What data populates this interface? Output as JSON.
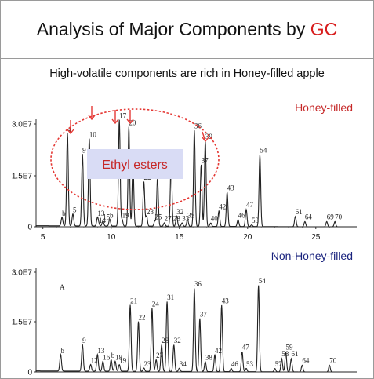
{
  "header": {
    "title_main": "Analysis of Major Components by ",
    "title_accent": "GC",
    "subtitle": "High-volatile components are rich in Honey-filled apple"
  },
  "colors": {
    "accent": "#d81e1e",
    "trace": "#222222",
    "ellipse": "#e53935",
    "callout_bg": "#d9dcf5"
  },
  "annotation": {
    "text": "Ethyl esters"
  },
  "chart_data": [
    {
      "type": "line",
      "label": "Honey-filled",
      "label_color": "#c62828",
      "x_ticks": [
        5,
        10,
        15,
        20,
        25
      ],
      "y_ticks": [
        "0",
        "1.5E7",
        "3.0E7"
      ],
      "xlim": [
        4.5,
        28
      ],
      "ylim": [
        0,
        34000000.0
      ],
      "peaks": [
        {
          "label": "b",
          "rt": 6.4,
          "h": 2500000.0
        },
        {
          "label": "4",
          "rt": 6.8,
          "h": 27000000.0
        },
        {
          "label": "5",
          "rt": 7.2,
          "h": 3500000.0
        },
        {
          "label": "9",
          "rt": 7.9,
          "h": 21000000.0
        },
        {
          "label": "10",
          "rt": 8.4,
          "h": 25500000.0
        },
        {
          "label": "13",
          "rt": 9.0,
          "h": 2500000.0
        },
        {
          "label": "14",
          "rt": 9.1,
          "h": 500000.0
        },
        {
          "label": "15",
          "rt": 9.4,
          "h": 1500000.0
        },
        {
          "label": "b",
          "rt": 9.9,
          "h": 2000000.0
        },
        {
          "label": "17",
          "rt": 10.6,
          "h": 31000000.0
        },
        {
          "label": "19",
          "rt": 10.8,
          "h": 2000000.0
        },
        {
          "label": "20",
          "rt": 11.3,
          "h": 29000000.0
        },
        {
          "label": "21",
          "rt": 11.6,
          "h": 19000000.0
        },
        {
          "label": "22",
          "rt": 12.4,
          "h": 13000000.0
        },
        {
          "label": "23",
          "rt": 12.6,
          "h": 3000000.0
        },
        {
          "label": "24",
          "rt": 13.4,
          "h": 14000000.0
        },
        {
          "label": "25",
          "rt": 13.2,
          "h": 1500000.0
        },
        {
          "label": "27,28",
          "rt": 13.9,
          "h": 1000000.0
        },
        {
          "label": "31",
          "rt": 14.4,
          "h": 20000000.0
        },
        {
          "label": "32",
          "rt": 14.8,
          "h": 3000000.0
        },
        {
          "label": "33",
          "rt": 15.2,
          "h": 1000000.0
        },
        {
          "label": "35",
          "rt": 15.6,
          "h": 2000000.0
        },
        {
          "label": "36",
          "rt": 16.1,
          "h": 28000000.0
        },
        {
          "label": "37",
          "rt": 16.6,
          "h": 18000000.0
        },
        {
          "label": "39",
          "rt": 16.9,
          "h": 25000000.0
        },
        {
          "label": "40",
          "rt": 17.3,
          "h": 1000000.0
        },
        {
          "label": "42",
          "rt": 17.9,
          "h": 4500000.0
        },
        {
          "label": "43",
          "rt": 18.5,
          "h": 10000000.0
        },
        {
          "label": "46",
          "rt": 19.3,
          "h": 2000000.0
        },
        {
          "label": "47",
          "rt": 19.9,
          "h": 5000000.0
        },
        {
          "label": "53",
          "rt": 20.3,
          "h": 500000.0
        },
        {
          "label": "54",
          "rt": 20.9,
          "h": 21000000.0
        },
        {
          "label": "61",
          "rt": 23.5,
          "h": 3000000.0
        },
        {
          "label": "64",
          "rt": 24.2,
          "h": 1500000.0
        },
        {
          "label": "69",
          "rt": 25.8,
          "h": 1500000.0
        },
        {
          "label": "70",
          "rt": 26.4,
          "h": 1500000.0
        }
      ]
    },
    {
      "type": "line",
      "label": "Non-Honey-filled",
      "label_color": "#1a237e",
      "y_ticks": [
        "0",
        "1.5E7",
        "3.0E7"
      ],
      "xlim": [
        4.5,
        28
      ],
      "ylim": [
        0,
        34000000.0
      ],
      "inner_label": "A",
      "peaks": [
        {
          "label": "b",
          "rt": 6.3,
          "h": 5000000.0
        },
        {
          "label": "9",
          "rt": 7.9,
          "h": 8000000.0
        },
        {
          "label": "12",
          "rt": 8.5,
          "h": 2000000.0
        },
        {
          "label": "13",
          "rt": 9.0,
          "h": 5000000.0
        },
        {
          "label": "16",
          "rt": 9.4,
          "h": 3000000.0
        },
        {
          "label": "b",
          "rt": 10.0,
          "h": 3500000.0
        },
        {
          "label": "18",
          "rt": 10.3,
          "h": 3000000.0
        },
        {
          "label": "19",
          "rt": 10.6,
          "h": 2000000.0
        },
        {
          "label": "21",
          "rt": 11.4,
          "h": 20000000.0
        },
        {
          "label": "22",
          "rt": 12.0,
          "h": 15000000.0
        },
        {
          "label": "23",
          "rt": 12.4,
          "h": 1000000.0
        },
        {
          "label": "24",
          "rt": 13.0,
          "h": 19000000.0
        },
        {
          "label": "27",
          "rt": 13.3,
          "h": 3500000.0
        },
        {
          "label": "28",
          "rt": 13.7,
          "h": 8000000.0
        },
        {
          "label": "31",
          "rt": 14.1,
          "h": 21000000.0
        },
        {
          "label": "32",
          "rt": 14.6,
          "h": 8000000.0
        },
        {
          "label": "34",
          "rt": 15.0,
          "h": 1000000.0
        },
        {
          "label": "36",
          "rt": 16.1,
          "h": 25000000.0
        },
        {
          "label": "37",
          "rt": 16.5,
          "h": 16000000.0
        },
        {
          "label": "38",
          "rt": 16.9,
          "h": 3000000.0
        },
        {
          "label": "42",
          "rt": 17.6,
          "h": 5000000.0
        },
        {
          "label": "43",
          "rt": 18.1,
          "h": 20000000.0
        },
        {
          "label": "46",
          "rt": 18.8,
          "h": 1000000.0
        },
        {
          "label": "47",
          "rt": 19.6,
          "h": 6000000.0
        },
        {
          "label": "53",
          "rt": 19.9,
          "h": 1000000.0
        },
        {
          "label": "54",
          "rt": 20.8,
          "h": 26000000.0
        },
        {
          "label": "57",
          "rt": 22.0,
          "h": 1000000.0
        },
        {
          "label": "58",
          "rt": 22.5,
          "h": 4000000.0
        },
        {
          "label": "59",
          "rt": 22.8,
          "h": 6000000.0
        },
        {
          "label": "61",
          "rt": 23.2,
          "h": 4000000.0
        },
        {
          "label": "64",
          "rt": 24.0,
          "h": 2000000.0
        },
        {
          "label": "70",
          "rt": 26.0,
          "h": 2000000.0
        }
      ]
    }
  ]
}
